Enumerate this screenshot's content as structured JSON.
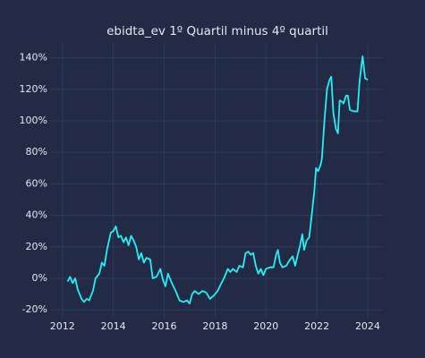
{
  "chart_data": {
    "type": "line",
    "title": "ebidta_ev 1º Quartil minus 4º quartil",
    "x": [
      2012.2,
      2012.3,
      2012.4,
      2012.5,
      2012.6,
      2012.75,
      2012.85,
      2012.95,
      2013.05,
      2013.2,
      2013.3,
      2013.45,
      2013.55,
      2013.65,
      2013.75,
      2013.9,
      2014.0,
      2014.1,
      2014.2,
      2014.3,
      2014.4,
      2014.5,
      2014.6,
      2014.7,
      2014.8,
      2014.9,
      2015.0,
      2015.1,
      2015.2,
      2015.3,
      2015.45,
      2015.55,
      2015.7,
      2015.85,
      2015.95,
      2016.05,
      2016.15,
      2016.3,
      2016.45,
      2016.6,
      2016.75,
      2016.9,
      2017.0,
      2017.1,
      2017.2,
      2017.35,
      2017.5,
      2017.65,
      2017.8,
      2017.95,
      2018.1,
      2018.25,
      2018.35,
      2018.5,
      2018.6,
      2018.7,
      2018.85,
      2018.95,
      2019.1,
      2019.2,
      2019.3,
      2019.4,
      2019.5,
      2019.6,
      2019.7,
      2019.8,
      2019.9,
      2020.0,
      2020.15,
      2020.3,
      2020.4,
      2020.47,
      2020.55,
      2020.65,
      2020.8,
      2020.95,
      2021.05,
      2021.15,
      2021.25,
      2021.33,
      2021.43,
      2021.5,
      2021.6,
      2021.7,
      2021.8,
      2021.9,
      2021.97,
      2022.05,
      2022.15,
      2022.2,
      2022.3,
      2022.4,
      2022.5,
      2022.57,
      2022.65,
      2022.75,
      2022.83,
      2022.9,
      2023.0,
      2023.05,
      2023.15,
      2023.22,
      2023.3,
      2023.45,
      2023.6,
      2023.68,
      2023.8,
      2023.9,
      2024.0
    ],
    "series": [
      {
        "name": "ebidta_ev",
        "color": "#1ff2f5",
        "values": [
          -2,
          1,
          -3,
          0,
          -7,
          -13,
          -15,
          -13,
          -14,
          -8,
          0,
          3,
          10,
          8,
          18,
          29,
          30,
          33,
          26,
          27,
          23,
          26,
          21,
          27,
          24,
          20,
          12,
          16,
          10,
          13,
          12,
          0,
          1,
          6,
          -1,
          -5,
          3,
          -3,
          -8,
          -14,
          -15,
          -14,
          -16,
          -10,
          -8,
          -10,
          -8,
          -9,
          -13,
          -11,
          -8,
          -3,
          0,
          6,
          4,
          6,
          4,
          8,
          7,
          16,
          17,
          15,
          16,
          8,
          3,
          6,
          2,
          6,
          7,
          7,
          15,
          18,
          10,
          7,
          8,
          12,
          14,
          8,
          15,
          20,
          28,
          18,
          24,
          26,
          40,
          55,
          70,
          68,
          72,
          76,
          100,
          120,
          126,
          128,
          105,
          95,
          92,
          113,
          112,
          111,
          116,
          116,
          107,
          106,
          106,
          125,
          141,
          127,
          126
        ]
      }
    ],
    "xlim": [
      2011.55,
      2024.6
    ],
    "xticks": [
      2012,
      2014,
      2016,
      2018,
      2020,
      2022,
      2024
    ],
    "ylim": [
      -25,
      150
    ],
    "yticks": [
      {
        "value": -20,
        "label": "-20%"
      },
      {
        "value": 0,
        "label": "0%"
      },
      {
        "value": 20,
        "label": "20%"
      },
      {
        "value": 40,
        "label": "40%"
      },
      {
        "value": 60,
        "label": "60%"
      },
      {
        "value": 80,
        "label": "80%"
      },
      {
        "value": 100,
        "label": "100%"
      },
      {
        "value": 120,
        "label": "120%"
      },
      {
        "value": 140,
        "label": "140%"
      }
    ],
    "grid": true
  }
}
